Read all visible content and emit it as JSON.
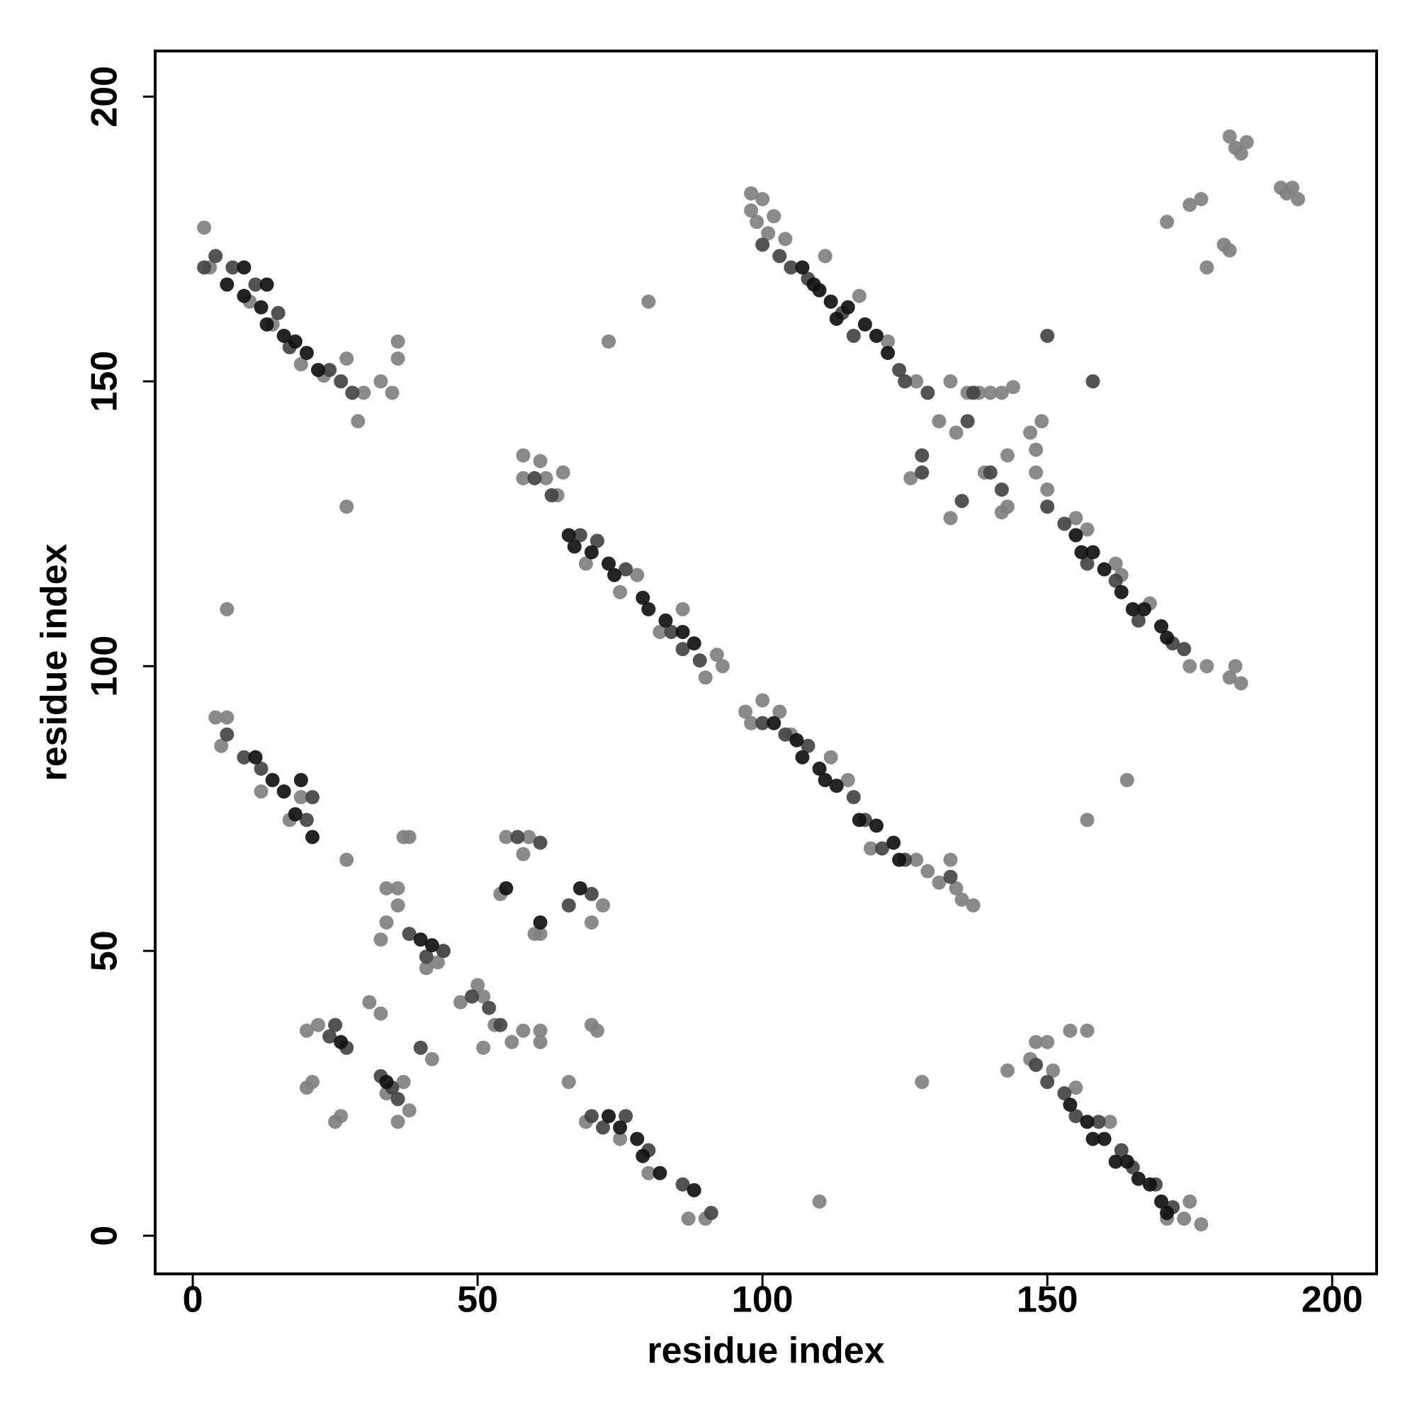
{
  "chart_data": {
    "type": "scatter",
    "xlabel": "residue index",
    "ylabel": "residue index",
    "xlim": [
      -6.6,
      207.8
    ],
    "ylim": [
      -6.7,
      208.0
    ],
    "xticks": [
      0,
      50,
      100,
      150,
      200
    ],
    "yticks": [
      0,
      50,
      100,
      150,
      200
    ],
    "series": [
      {
        "color": "#808080",
        "x": [
          2,
          3,
          10,
          14,
          19,
          23,
          27,
          30,
          33,
          35,
          36,
          36,
          29,
          4,
          6,
          5,
          12,
          17,
          19,
          58,
          58,
          61,
          62,
          64,
          65,
          69,
          75,
          78,
          82,
          86,
          90,
          92,
          93,
          97,
          98,
          100,
          103,
          105,
          112,
          115,
          119,
          127,
          129,
          131,
          133,
          134,
          135,
          137,
          98,
          98,
          100,
          99,
          101,
          102,
          104,
          111,
          117,
          122,
          127,
          131,
          133,
          134,
          136,
          138,
          140,
          142,
          144,
          126,
          133,
          139,
          143,
          147,
          148,
          149,
          142,
          143,
          148,
          150,
          155,
          157,
          162,
          163,
          168,
          175,
          178,
          182,
          184,
          183,
          147,
          148,
          150,
          151,
          155,
          154,
          157,
          161,
          175,
          174,
          171,
          177,
          143,
          71,
          69,
          75,
          80,
          87,
          90,
          20,
          21,
          20,
          22,
          25,
          26,
          31,
          33,
          34,
          38,
          37,
          36,
          33,
          34,
          36,
          36,
          37,
          38,
          34,
          41,
          43,
          44,
          47,
          50,
          51,
          53,
          56,
          58,
          61,
          61,
          51,
          54,
          55,
          58,
          59,
          60,
          61,
          66,
          70,
          70,
          72,
          42,
          182,
          183,
          184,
          185,
          191,
          192,
          193,
          194,
          175,
          177,
          171,
          178,
          181,
          182,
          6,
          27,
          73,
          80,
          110,
          128,
          157,
          164,
          27
        ],
        "y": [
          177,
          170,
          164,
          160,
          153,
          151,
          154,
          148,
          150,
          148,
          157,
          154,
          143,
          91,
          91,
          86,
          78,
          73,
          77,
          137,
          133,
          136,
          133,
          130,
          134,
          118,
          113,
          116,
          106,
          110,
          98,
          102,
          100,
          92,
          90,
          94,
          92,
          88,
          84,
          80,
          68,
          66,
          64,
          62,
          66,
          61,
          59,
          58,
          183,
          180,
          182,
          178,
          176,
          179,
          175,
          172,
          165,
          157,
          150,
          143,
          150,
          141,
          148,
          148,
          148,
          148,
          149,
          133,
          126,
          134,
          137,
          141,
          138,
          143,
          127,
          128,
          134,
          131,
          126,
          124,
          118,
          116,
          111,
          100,
          100,
          98,
          97,
          100,
          31,
          34,
          34,
          29,
          26,
          36,
          36,
          20,
          6,
          3,
          3,
          2,
          29,
          36,
          20,
          17,
          11,
          3,
          3,
          26,
          27,
          36,
          37,
          20,
          21,
          41,
          39,
          25,
          22,
          27,
          20,
          52,
          61,
          58,
          61,
          70,
          70,
          55,
          47,
          48,
          50,
          41,
          44,
          42,
          37,
          34,
          36,
          34,
          36,
          33,
          60,
          70,
          67,
          70,
          53,
          53,
          27,
          55,
          37,
          58,
          31,
          193,
          191,
          190,
          192,
          184,
          183,
          184,
          182,
          181,
          182,
          178,
          170,
          174,
          173,
          110,
          128,
          157,
          164,
          6,
          27,
          73,
          80,
          66
        ]
      },
      {
        "color": "#444444",
        "x": [
          4,
          7,
          11,
          15,
          17,
          24,
          26,
          28,
          2,
          6,
          9,
          12,
          20,
          21,
          60,
          63,
          68,
          71,
          76,
          84,
          86,
          89,
          100,
          104,
          108,
          116,
          118,
          121,
          125,
          133,
          100,
          103,
          105,
          108,
          114,
          116,
          124,
          125,
          129,
          128,
          128,
          140,
          142,
          150,
          153,
          157,
          162,
          166,
          172,
          174,
          150,
          158,
          137,
          136,
          135,
          148,
          150,
          153,
          155,
          159,
          163,
          165,
          169,
          172,
          70,
          72,
          76,
          80,
          86,
          91,
          24,
          27,
          25,
          33,
          35,
          36,
          38,
          41,
          44,
          49,
          52,
          54,
          40,
          57,
          61,
          66,
          70
        ],
        "y": [
          172,
          170,
          167,
          162,
          156,
          152,
          150,
          148,
          170,
          88,
          84,
          82,
          73,
          77,
          133,
          130,
          123,
          122,
          117,
          106,
          103,
          101,
          90,
          88,
          86,
          77,
          73,
          68,
          66,
          63,
          174,
          172,
          170,
          168,
          162,
          158,
          152,
          150,
          148,
          137,
          134,
          134,
          131,
          128,
          125,
          118,
          115,
          108,
          104,
          103,
          158,
          150,
          148,
          143,
          129,
          30,
          27,
          25,
          21,
          20,
          15,
          12,
          9,
          5,
          21,
          19,
          21,
          15,
          9,
          4,
          35,
          33,
          37,
          28,
          26,
          24,
          53,
          49,
          50,
          42,
          40,
          37,
          33,
          70,
          69,
          58,
          60
        ]
      },
      {
        "color": "#111111",
        "x": [
          6,
          9,
          12,
          13,
          16,
          18,
          20,
          22,
          9,
          13,
          11,
          14,
          16,
          18,
          21,
          19,
          66,
          67,
          70,
          73,
          74,
          79,
          80,
          83,
          86,
          88,
          102,
          106,
          107,
          110,
          111,
          113,
          117,
          120,
          123,
          124,
          107,
          110,
          112,
          115,
          118,
          120,
          122,
          155,
          156,
          158,
          160,
          163,
          165,
          167,
          170,
          171,
          109,
          113,
          157,
          160,
          158,
          162,
          164,
          166,
          168,
          170,
          171,
          154,
          73,
          75,
          78,
          79,
          82,
          88,
          34,
          26,
          40,
          42,
          55,
          61,
          68
        ],
        "y": [
          167,
          165,
          163,
          160,
          158,
          157,
          155,
          152,
          170,
          167,
          84,
          80,
          78,
          74,
          70,
          80,
          123,
          121,
          120,
          118,
          116,
          112,
          110,
          108,
          106,
          104,
          90,
          87,
          84,
          82,
          80,
          79,
          73,
          72,
          69,
          66,
          170,
          166,
          164,
          163,
          160,
          158,
          155,
          123,
          120,
          120,
          117,
          113,
          110,
          110,
          107,
          105,
          167,
          161,
          20,
          17,
          17,
          13,
          13,
          10,
          9,
          6,
          4,
          23,
          21,
          19,
          17,
          14,
          11,
          8,
          27,
          34,
          52,
          51,
          61,
          55,
          61
        ]
      }
    ]
  }
}
